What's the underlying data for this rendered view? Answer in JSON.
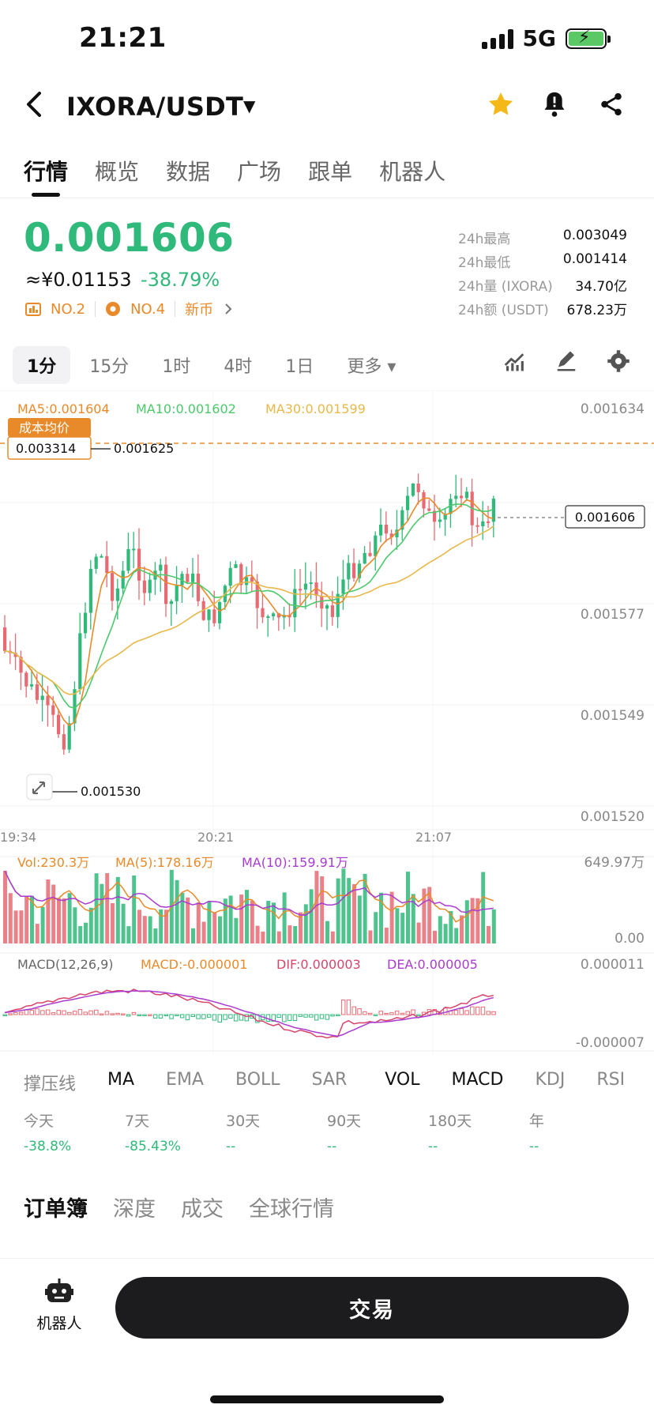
{
  "status": {
    "time": "21:21",
    "network": "5G"
  },
  "header": {
    "pair": "IXORA/USDT"
  },
  "tabs": [
    "行情",
    "概览",
    "数据",
    "广场",
    "跟单",
    "机器人"
  ],
  "price": {
    "last": "0.001606",
    "cny": "≈¥0.01153",
    "change": "-38.79%",
    "rank1": "NO.2",
    "rank2": "NO.4",
    "tag": "新币"
  },
  "stats": [
    {
      "label": "24h最高",
      "value": "0.003049"
    },
    {
      "label": "24h最低",
      "value": "0.001414"
    },
    {
      "label": "24h量 (IXORA)",
      "value": "34.70亿"
    },
    {
      "label": "24h额 (USDT)",
      "value": "678.23万"
    }
  ],
  "timeframes": [
    "1分",
    "15分",
    "1时",
    "4时",
    "1日",
    "更多"
  ],
  "chart": {
    "ma_legend": {
      "ma5": "MA5:0.001604",
      "ma10": "MA10:0.001602",
      "ma30": "MA30:0.001599"
    },
    "cost_label": "成本均价",
    "cost_value": "0.003314",
    "high_marker": "0.001625",
    "low_marker": "0.001530",
    "current_tag": "0.001606",
    "price_axis": [
      "0.001634",
      "0.001577",
      "0.001549",
      "0.001520"
    ],
    "time_axis": [
      "19:34",
      "20:21",
      "21:07"
    ],
    "vol_legend": {
      "vol": "Vol:230.3万",
      "ma5": "MA(5):178.16万",
      "ma10": "MA(10):159.91万"
    },
    "vol_axis": [
      "649.97万",
      "0.00"
    ],
    "macd_legend": {
      "title": "MACD(12,26,9)",
      "macd": "MACD:-0.000001",
      "dif": "DIF:0.000003",
      "dea": "DEA:0.000005"
    },
    "macd_axis": [
      "0.000011",
      "-0.000007"
    ]
  },
  "indicators": [
    "撑压线",
    "MA",
    "EMA",
    "BOLL",
    "SAR",
    "VOL",
    "MACD",
    "KDJ",
    "RSI"
  ],
  "performance": [
    {
      "label": "今天",
      "value": "-38.8%"
    },
    {
      "label": "7天",
      "value": "-85.43%"
    },
    {
      "label": "30天",
      "value": "--"
    },
    {
      "label": "90天",
      "value": "--"
    },
    {
      "label": "180天",
      "value": "--"
    },
    {
      "label": "年",
      "value": "--"
    }
  ],
  "book_tabs": [
    "订单簿",
    "深度",
    "成交",
    "全球行情"
  ],
  "bottom": {
    "robot_label": "机器人",
    "trade_label": "交易"
  },
  "colors": {
    "up": "#2fb97a",
    "down": "#e86b73",
    "accent": "#e98a2a"
  }
}
